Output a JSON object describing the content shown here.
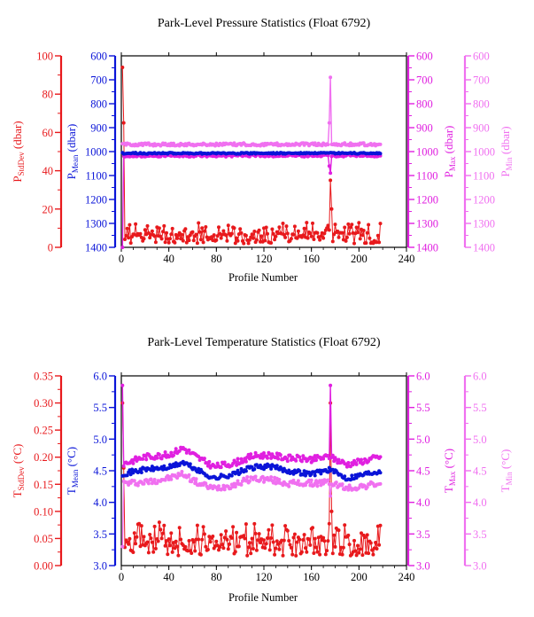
{
  "colors": {
    "stddev": "#e8191c",
    "mean": "#0a14d8",
    "max": "#e020e0",
    "min": "#f070f0",
    "mean_outline": "#000000"
  },
  "chart_data": [
    {
      "type": "line",
      "title": "Park-Level Pressure Statistics (Float 6792)",
      "xlabel": "Profile Number",
      "xlim": [
        0,
        240
      ],
      "xticks": [
        0,
        40,
        80,
        120,
        160,
        200,
        240
      ],
      "axes": [
        {
          "key": "stddev",
          "label_main": "P",
          "label_sub": "StdDev",
          "label_unit": " (dbar)",
          "lim": [
            0,
            100
          ],
          "ticks": [
            0,
            20,
            40,
            60,
            80,
            100
          ],
          "inverted": false
        },
        {
          "key": "mean",
          "label_main": "P",
          "label_sub": "Mean",
          "label_unit": " (dbar)",
          "lim": [
            600,
            1400
          ],
          "ticks": [
            600,
            700,
            800,
            900,
            1000,
            1100,
            1200,
            1300,
            1400
          ],
          "inverted": true
        },
        {
          "key": "max",
          "label_main": "P",
          "label_sub": "Max",
          "label_unit": " (dbar)",
          "lim": [
            600,
            1400
          ],
          "ticks": [
            600,
            700,
            800,
            900,
            1000,
            1100,
            1200,
            1300,
            1400
          ],
          "inverted": true
        },
        {
          "key": "min",
          "label_main": "P",
          "label_sub": "Min",
          "label_unit": " (dbar)",
          "lim": [
            600,
            1400
          ],
          "ticks": [
            600,
            700,
            800,
            900,
            1000,
            1100,
            1200,
            1300,
            1400
          ],
          "inverted": true
        }
      ],
      "series": [
        {
          "key": "stddev",
          "n": 218,
          "base": 5,
          "amp": 2.2,
          "seed": 11,
          "spikes": [
            {
              "x": 1,
              "y": 94
            },
            {
              "x": 2,
              "y": 65
            },
            {
              "x": 176,
              "y": 35
            },
            {
              "x": 177,
              "y": 20
            },
            {
              "x": 120,
              "y": 10
            },
            {
              "x": 32,
              "y": 10
            }
          ]
        },
        {
          "key": "mean",
          "n": 218,
          "base": 1007,
          "amp": 3,
          "seed": 23,
          "spikes": []
        },
        {
          "key": "max",
          "n": 218,
          "base": 1017,
          "amp": 5,
          "seed": 37,
          "spikes": [
            {
              "x": 1,
              "y": 1400
            },
            {
              "x": 175,
              "y": 1060
            },
            {
              "x": 176,
              "y": 1090
            }
          ]
        },
        {
          "key": "min",
          "n": 218,
          "base": 970,
          "amp": 6,
          "seed": 51,
          "spikes": [
            {
              "x": 176,
              "y": 690
            },
            {
              "x": 175,
              "y": 880
            }
          ]
        }
      ]
    },
    {
      "type": "line",
      "title": "Park-Level Temperature Statistics (Float 6792)",
      "xlabel": "Profile Number",
      "xlim": [
        0,
        240
      ],
      "xticks": [
        0,
        40,
        80,
        120,
        160,
        200,
        240
      ],
      "axes": [
        {
          "key": "stddev",
          "label_main": "T",
          "label_sub": "StdDev",
          "label_unit": " (°C)",
          "lim": [
            0,
            0.35
          ],
          "ticks": [
            "0.00",
            "0.05",
            "0.10",
            "0.15",
            "0.20",
            "0.25",
            "0.30",
            "0.35"
          ],
          "inverted": false
        },
        {
          "key": "mean",
          "label_main": "T",
          "label_sub": "Mean",
          "label_unit": " (°C)",
          "lim": [
            3.0,
            6.0
          ],
          "ticks": [
            "3.0",
            "3.5",
            "4.0",
            "4.5",
            "5.0",
            "5.5",
            "6.0"
          ],
          "inverted": false
        },
        {
          "key": "max",
          "label_main": "T",
          "label_sub": "Max",
          "label_unit": " (°C)",
          "lim": [
            3.0,
            6.0
          ],
          "ticks": [
            "3.0",
            "3.5",
            "4.0",
            "4.5",
            "5.0",
            "5.5",
            "6.0"
          ],
          "inverted": false
        },
        {
          "key": "min",
          "label_main": "T",
          "label_sub": "Min",
          "label_unit": " (°C)",
          "lim": [
            3.0,
            6.0
          ],
          "ticks": [
            "3.0",
            "3.5",
            "4.0",
            "4.5",
            "5.0",
            "5.5",
            "6.0"
          ],
          "inverted": false
        }
      ],
      "series": [
        {
          "key": "stddev",
          "n": 218,
          "base": 0.045,
          "amp": 0.012,
          "seed": 61,
          "spikes": [
            {
              "x": 1,
              "y": 0.3
            },
            {
              "x": 2,
              "y": 0.18
            },
            {
              "x": 176,
              "y": 0.3
            },
            {
              "x": 177,
              "y": 0.1
            },
            {
              "x": 32,
              "y": 0.08
            }
          ]
        },
        {
          "key": "mean",
          "n": 218,
          "base": 4.45,
          "amp": 0.04,
          "seed": 71,
          "profile": [
            [
              0,
              4.45
            ],
            [
              20,
              4.52
            ],
            [
              40,
              4.55
            ],
            [
              52,
              4.63
            ],
            [
              65,
              4.5
            ],
            [
              78,
              4.38
            ],
            [
              95,
              4.45
            ],
            [
              110,
              4.55
            ],
            [
              125,
              4.57
            ],
            [
              140,
              4.5
            ],
            [
              160,
              4.45
            ],
            [
              175,
              4.52
            ],
            [
              190,
              4.38
            ],
            [
              205,
              4.45
            ],
            [
              218,
              4.5
            ]
          ],
          "spikes": []
        },
        {
          "key": "max",
          "n": 218,
          "base": 4.65,
          "amp": 0.05,
          "seed": 83,
          "profile": [
            [
              0,
              4.6
            ],
            [
              20,
              4.72
            ],
            [
              40,
              4.75
            ],
            [
              52,
              4.86
            ],
            [
              65,
              4.7
            ],
            [
              78,
              4.56
            ],
            [
              95,
              4.62
            ],
            [
              110,
              4.73
            ],
            [
              125,
              4.75
            ],
            [
              140,
              4.7
            ],
            [
              160,
              4.68
            ],
            [
              175,
              4.72
            ],
            [
              190,
              4.6
            ],
            [
              205,
              4.66
            ],
            [
              218,
              4.72
            ]
          ],
          "spikes": [
            {
              "x": 1,
              "y": 5.85
            },
            {
              "x": 176,
              "y": 5.85
            }
          ]
        },
        {
          "key": "min",
          "n": 218,
          "base": 4.25,
          "amp": 0.05,
          "seed": 97,
          "profile": [
            [
              0,
              4.3
            ],
            [
              20,
              4.32
            ],
            [
              40,
              4.38
            ],
            [
              52,
              4.45
            ],
            [
              65,
              4.3
            ],
            [
              78,
              4.22
            ],
            [
              95,
              4.28
            ],
            [
              110,
              4.38
            ],
            [
              125,
              4.36
            ],
            [
              140,
              4.3
            ],
            [
              160,
              4.3
            ],
            [
              175,
              4.32
            ],
            [
              190,
              4.22
            ],
            [
              205,
              4.26
            ],
            [
              218,
              4.3
            ]
          ],
          "spikes": [
            {
              "x": 1,
              "y": 3.3
            },
            {
              "x": 176,
              "y": 4.1
            }
          ]
        }
      ]
    }
  ]
}
